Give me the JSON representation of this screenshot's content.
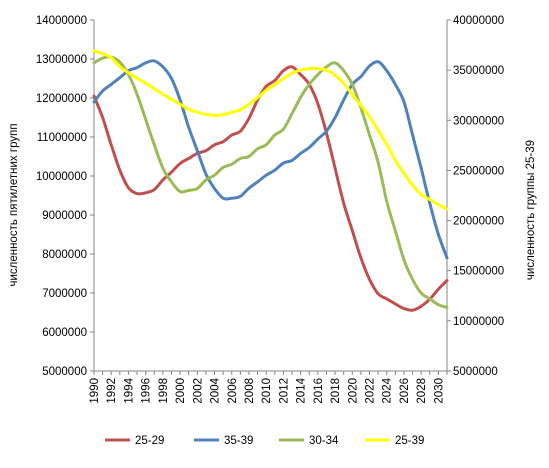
{
  "chart_data": {
    "type": "line",
    "title": "",
    "xlabel": "",
    "ylabel_left": "численность пятилетних групп",
    "ylabel_right": "численность группы 25-39",
    "ylim_left": [
      5000000,
      14000000
    ],
    "ylim_right": [
      5000000,
      40000000
    ],
    "y_ticks_left": [
      "5000000",
      "6000000",
      "7000000",
      "8000000",
      "9000000",
      "10000000",
      "11000000",
      "12000000",
      "13000000",
      "14000000"
    ],
    "y_ticks_right": [
      "5000000",
      "10000000",
      "15000000",
      "20000000",
      "25000000",
      "30000000",
      "35000000",
      "40000000"
    ],
    "x_ticks": [
      "1990",
      "1992",
      "1994",
      "1996",
      "1998",
      "2000",
      "2002",
      "2004",
      "2006",
      "2008",
      "2010",
      "2012",
      "2014",
      "2016",
      "2018",
      "2020",
      "2022",
      "2024",
      "2026",
      "2028",
      "2030"
    ],
    "grid": false,
    "legend_position": "bottom",
    "x": [
      1990,
      1991,
      1992,
      1993,
      1994,
      1995,
      1996,
      1997,
      1998,
      1999,
      2000,
      2001,
      2002,
      2003,
      2004,
      2005,
      2006,
      2007,
      2008,
      2009,
      2010,
      2011,
      2012,
      2013,
      2014,
      2015,
      2016,
      2017,
      2018,
      2019,
      2020,
      2021,
      2022,
      2023,
      2024,
      2025,
      2026,
      2027,
      2028,
      2029,
      2030,
      2031
    ],
    "series": [
      {
        "name": "25-29",
        "axis": "left",
        "color": "#c0504d",
        "values": [
          12050000,
          11500000,
          10800000,
          10150000,
          9700000,
          9550000,
          9570000,
          9650000,
          9900000,
          10100000,
          10320000,
          10450000,
          10580000,
          10650000,
          10800000,
          10880000,
          11050000,
          11150000,
          11480000,
          11950000,
          12300000,
          12450000,
          12700000,
          12800000,
          12600000,
          12350000,
          11850000,
          11100000,
          10200000,
          9300000,
          8600000,
          7900000,
          7350000,
          6980000,
          6850000,
          6720000,
          6600000,
          6560000,
          6660000,
          6840000,
          7100000,
          7320000
        ]
      },
      {
        "name": "35-39",
        "axis": "left",
        "color": "#4f81bd",
        "values": [
          11900000,
          12180000,
          12350000,
          12520000,
          12700000,
          12780000,
          12900000,
          12950000,
          12800000,
          12500000,
          11950000,
          11250000,
          10650000,
          10050000,
          9680000,
          9430000,
          9430000,
          9480000,
          9690000,
          9850000,
          10020000,
          10150000,
          10330000,
          10400000,
          10580000,
          10730000,
          10950000,
          11150000,
          11500000,
          11950000,
          12350000,
          12550000,
          12820000,
          12930000,
          12700000,
          12350000,
          11900000,
          11050000,
          10200000,
          9300000,
          8500000,
          7900000
        ]
      },
      {
        "name": "30-34",
        "axis": "left",
        "color": "#9bbb59",
        "values": [
          12900000,
          13020000,
          13050000,
          12920000,
          12600000,
          12100000,
          11450000,
          10800000,
          10200000,
          9850000,
          9600000,
          9630000,
          9680000,
          9900000,
          10020000,
          10220000,
          10300000,
          10450000,
          10500000,
          10700000,
          10800000,
          11050000,
          11200000,
          11600000,
          12020000,
          12350000,
          12600000,
          12800000,
          12900000,
          12700000,
          12350000,
          11750000,
          11050000,
          10350000,
          9350000,
          8600000,
          7850000,
          7350000,
          7000000,
          6850000,
          6700000,
          6630000
        ]
      },
      {
        "name": "25-39",
        "axis": "right",
        "color": "#ffff00",
        "values": [
          36900000,
          36650000,
          36250000,
          35350000,
          34750000,
          34200000,
          33700000,
          33150000,
          32600000,
          32100000,
          31600000,
          31100000,
          30800000,
          30600000,
          30500000,
          30550000,
          30800000,
          31050000,
          31600000,
          32250000,
          33000000,
          33550000,
          34150000,
          34700000,
          35000000,
          35150000,
          35150000,
          35000000,
          34500000,
          33700000,
          32550000,
          31500000,
          30350000,
          29000000,
          27600000,
          26000000,
          24700000,
          23550000,
          22600000,
          22100000,
          21600000,
          21150000
        ]
      }
    ]
  }
}
